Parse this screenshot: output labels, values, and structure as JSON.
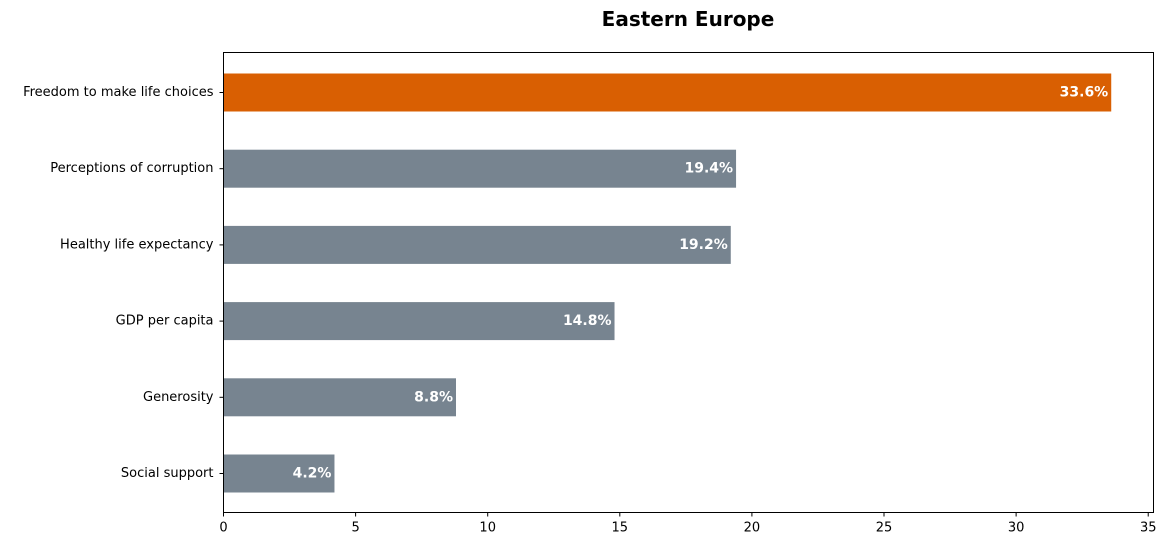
{
  "chart_data": {
    "type": "bar",
    "orientation": "horizontal",
    "title": "Eastern Europe",
    "xlabel": "",
    "ylabel": "",
    "categories": [
      "Freedom to make life choices",
      "Perceptions of corruption",
      "Healthy life expectancy",
      "GDP per capita",
      "Generosity",
      "Social support"
    ],
    "values": [
      33.6,
      19.4,
      19.2,
      14.8,
      8.8,
      4.2
    ],
    "value_labels": [
      "33.6%",
      "19.4%",
      "19.2%",
      "14.8%",
      "8.8%",
      "4.2%"
    ],
    "xlim": [
      0,
      35.2
    ],
    "xticks": [
      0,
      5,
      10,
      15,
      20,
      25,
      30,
      35
    ],
    "xtick_labels": [
      "0",
      "5",
      "10",
      "15",
      "20",
      "25",
      "30",
      "35"
    ],
    "grid": false,
    "legend": "none",
    "colors": {
      "highlight": "#d95f02",
      "default": "#778490"
    },
    "highlight_index": 0
  }
}
